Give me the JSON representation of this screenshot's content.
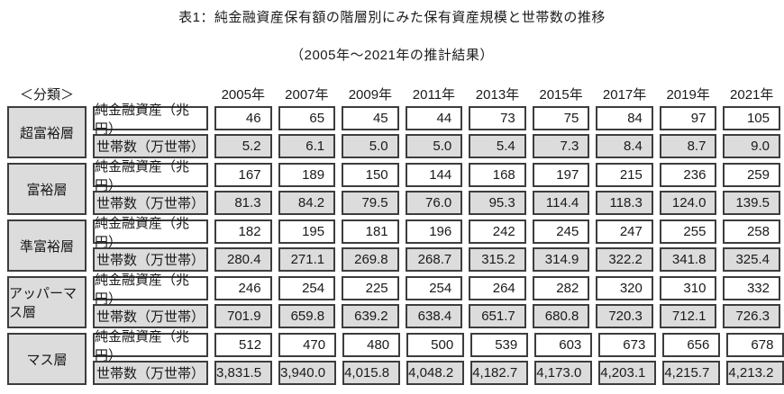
{
  "chart_data": {
    "type": "table",
    "title": "表1：純金融資産保有額の階層別にみた保有資産規模と世帯数の推移",
    "subtitle": "（2005年～2021年の推計結果）",
    "classification_header": "＜分類＞",
    "columns": [
      "2005年",
      "2007年",
      "2009年",
      "2011年",
      "2013年",
      "2015年",
      "2017年",
      "2019年",
      "2021年"
    ],
    "metrics": {
      "assets_label": "純金融資産（兆円）",
      "households_label": "世帯数（万世帯）"
    },
    "tiers": [
      {
        "name": "超富裕層",
        "assets": [
          "46",
          "65",
          "45",
          "44",
          "73",
          "75",
          "84",
          "97",
          "105"
        ],
        "households": [
          "5.2",
          "6.1",
          "5.0",
          "5.0",
          "5.4",
          "7.3",
          "8.4",
          "8.7",
          "9.0"
        ]
      },
      {
        "name": "富裕層",
        "assets": [
          "167",
          "189",
          "150",
          "144",
          "168",
          "197",
          "215",
          "236",
          "259"
        ],
        "households": [
          "81.3",
          "84.2",
          "79.5",
          "76.0",
          "95.3",
          "114.4",
          "118.3",
          "124.0",
          "139.5"
        ]
      },
      {
        "name": "準富裕層",
        "assets": [
          "182",
          "195",
          "181",
          "196",
          "242",
          "245",
          "247",
          "255",
          "258"
        ],
        "households": [
          "280.4",
          "271.1",
          "269.8",
          "268.7",
          "315.2",
          "314.9",
          "322.2",
          "341.8",
          "325.4"
        ]
      },
      {
        "name": "アッパーマス層",
        "assets": [
          "246",
          "254",
          "225",
          "254",
          "264",
          "282",
          "320",
          "310",
          "332"
        ],
        "households": [
          "701.9",
          "659.8",
          "639.2",
          "638.4",
          "651.7",
          "680.8",
          "720.3",
          "712.1",
          "726.3"
        ]
      },
      {
        "name": "マス層",
        "assets": [
          "512",
          "470",
          "480",
          "500",
          "539",
          "603",
          "673",
          "656",
          "678"
        ],
        "households": [
          "3,831.5",
          "3,940.0",
          "4,015.8",
          "4,048.2",
          "4,182.7",
          "4,173.0",
          "4,203.1",
          "4,215.7",
          "4,213.2"
        ]
      }
    ],
    "layout": {
      "assets_row_fill": "#ffffff",
      "households_row_fill": "#dcdcdc",
      "tier_cell_fill": "#dcdcdc",
      "cell_border_color": "#3d3d3d",
      "text_color": "#1a1a1a"
    }
  }
}
